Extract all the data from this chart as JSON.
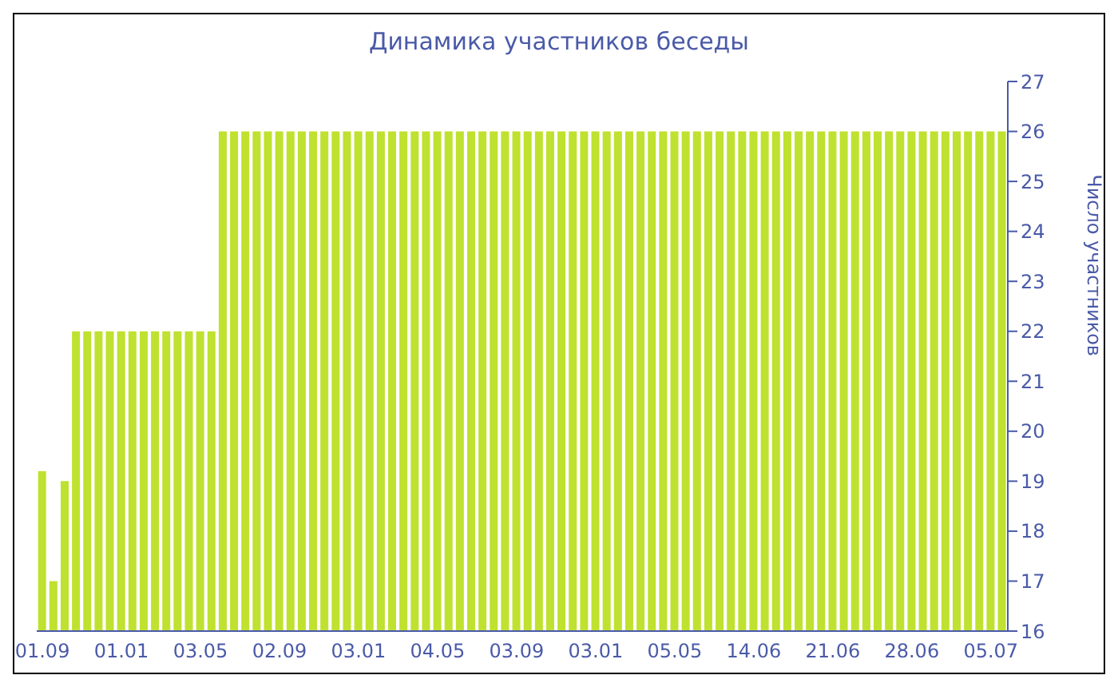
{
  "chart_data": {
    "type": "bar",
    "title": "Динамика участников беседы",
    "ylabel": "Число участников",
    "categories": [
      "01.09",
      null,
      null,
      null,
      null,
      null,
      null,
      "01.01",
      null,
      null,
      null,
      null,
      null,
      null,
      "03.05",
      null,
      null,
      null,
      null,
      null,
      null,
      "02.09",
      null,
      null,
      null,
      null,
      null,
      null,
      "03.01",
      null,
      null,
      null,
      null,
      null,
      null,
      "04.05",
      null,
      null,
      null,
      null,
      null,
      null,
      "03.09",
      null,
      null,
      null,
      null,
      null,
      null,
      "03.01",
      null,
      null,
      null,
      null,
      null,
      null,
      "05.05",
      null,
      null,
      null,
      null,
      null,
      null,
      "14.06",
      null,
      null,
      null,
      null,
      null,
      null,
      "21.06",
      null,
      null,
      null,
      null,
      null,
      null,
      "28.06",
      null,
      null,
      null,
      null,
      null,
      null,
      "05.07",
      null
    ],
    "values": [
      19.2,
      17,
      19,
      22,
      22,
      22,
      22,
      22,
      22,
      22,
      22,
      22,
      22,
      22,
      22,
      22,
      26,
      26,
      26,
      26,
      26,
      26,
      26,
      26,
      26,
      26,
      26,
      26,
      26,
      26,
      26,
      26,
      26,
      26,
      26,
      26,
      26,
      26,
      26,
      26,
      26,
      26,
      26,
      26,
      26,
      26,
      26,
      26,
      26,
      26,
      26,
      26,
      26,
      26,
      26,
      26,
      26,
      26,
      26,
      26,
      26,
      26,
      26,
      26,
      26,
      26,
      26,
      26,
      26,
      26,
      26,
      26,
      26,
      26,
      26,
      26,
      26,
      26,
      26,
      26,
      26,
      26,
      26,
      26,
      26,
      26
    ],
    "color": "#bfe12f",
    "ylim": [
      16,
      27
    ],
    "yticks": [
      16,
      17,
      18,
      19,
      20,
      21,
      22,
      23,
      24,
      25,
      26,
      27
    ]
  }
}
